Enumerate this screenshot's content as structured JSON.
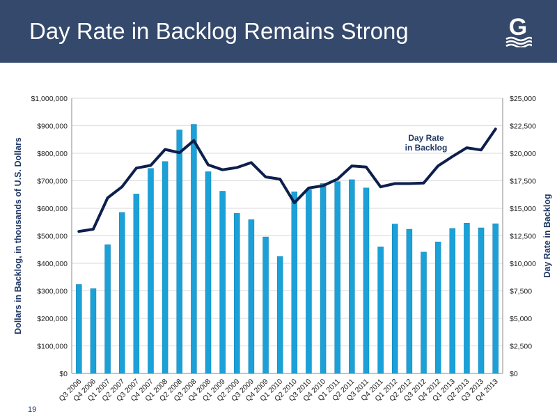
{
  "slide": {
    "title": "Day Rate in Backlog Remains Strong",
    "page_number": "19",
    "logo_letter": "G"
  },
  "colors": {
    "header_bg": "#34496b",
    "bar": "#1ba1d8",
    "line": "#0d1f4c"
  },
  "chart_data": {
    "type": "bar",
    "title": "",
    "categories": [
      "Q3 2006",
      "Q4 2006",
      "Q1 2007",
      "Q2 2007",
      "Q3 2007",
      "Q4 2007",
      "Q1 2008",
      "Q2 2008",
      "Q3 2008",
      "Q4 2008",
      "Q1 2009",
      "Q2 2009",
      "Q3 2009",
      "Q4 2009",
      "Q1 2010",
      "Q2 2010",
      "Q3 2010",
      "Q4 2010",
      "Q1 2011",
      "Q2 2011",
      "Q3 2011",
      "Q4 2011",
      "Q1 2012",
      "Q2 2012",
      "Q3 2012",
      "Q4 2012",
      "Q1 2013",
      "Q2 2013",
      "Q3 2013",
      "Q4 2013"
    ],
    "series": [
      {
        "type": "bar",
        "axis": "left",
        "values": [
          323000,
          308000,
          468000,
          585000,
          652000,
          745000,
          770000,
          885000,
          905000,
          733000,
          662000,
          582000,
          559000,
          496000,
          425000,
          660000,
          668000,
          690000,
          697000,
          704000,
          674000,
          460000,
          543000,
          524000,
          441000,
          478000,
          527000,
          546000,
          529000,
          544000
        ]
      },
      {
        "name": "Day Rate in Backlog",
        "label_lines": [
          "Day Rate",
          "in Backlog"
        ],
        "type": "line",
        "axis": "right",
        "values": [
          12900,
          13100,
          15950,
          16950,
          18650,
          18900,
          20350,
          20050,
          21150,
          18950,
          18500,
          18700,
          19150,
          17850,
          17650,
          15500,
          16850,
          17050,
          17650,
          18850,
          18750,
          16950,
          17250,
          17250,
          17300,
          18850,
          19700,
          20500,
          20300,
          22200
        ]
      }
    ],
    "y_left": {
      "label": "Dollars in Backlog, in thousands of U.S. Dollars",
      "min": 0,
      "max": 1000000,
      "step": 100000,
      "ticks": [
        "$0",
        "$100,000",
        "$200,000",
        "$300,000",
        "$400,000",
        "$500,000",
        "$600,000",
        "$700,000",
        "$800,000",
        "$900,000",
        "$1,000,000"
      ]
    },
    "y_right": {
      "label": "Day Rate in Backlog",
      "min": 0,
      "max": 25000,
      "step": 2500,
      "ticks": [
        "$0",
        "$2,500",
        "$5,000",
        "$7,500",
        "$10,000",
        "$12,500",
        "$15,000",
        "$17,500",
        "$20,000",
        "$22,500",
        "$25,000"
      ]
    },
    "grid": true,
    "legend": "inline label near line end"
  }
}
